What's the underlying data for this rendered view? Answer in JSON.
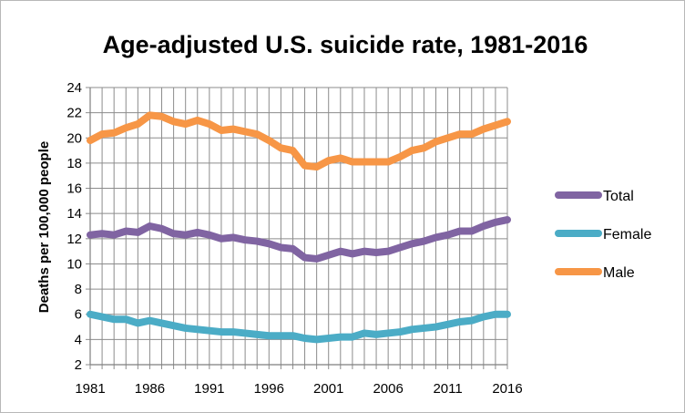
{
  "chart_data": {
    "type": "line",
    "title": "Age-adjusted U.S. suicide rate, 1981-2016",
    "xlabel": "",
    "ylabel": "Deaths per 100,000 people",
    "x": [
      1981,
      1982,
      1983,
      1984,
      1985,
      1986,
      1987,
      1988,
      1989,
      1990,
      1991,
      1992,
      1993,
      1994,
      1995,
      1996,
      1997,
      1998,
      1999,
      2000,
      2001,
      2002,
      2003,
      2004,
      2005,
      2006,
      2007,
      2008,
      2009,
      2010,
      2011,
      2012,
      2013,
      2014,
      2015,
      2016
    ],
    "xlim": [
      1981,
      2016
    ],
    "ylim": [
      2,
      24
    ],
    "x_ticks": [
      "1981",
      "1986",
      "1991",
      "1996",
      "2001",
      "2006",
      "2011",
      "2016"
    ],
    "y_ticks": [
      "2",
      "4",
      "6",
      "8",
      "10",
      "12",
      "14",
      "16",
      "18",
      "20",
      "22",
      "24"
    ],
    "grid": true,
    "legend_position": "right",
    "series": [
      {
        "name": "Total",
        "color": "#8064a2",
        "values": [
          12.3,
          12.4,
          12.3,
          12.6,
          12.5,
          13.0,
          12.8,
          12.4,
          12.3,
          12.5,
          12.3,
          12.0,
          12.1,
          11.9,
          11.8,
          11.6,
          11.3,
          11.2,
          10.5,
          10.4,
          10.7,
          11.0,
          10.8,
          11.0,
          10.9,
          11.0,
          11.3,
          11.6,
          11.8,
          12.1,
          12.3,
          12.6,
          12.6,
          13.0,
          13.3,
          13.5
        ]
      },
      {
        "name": "Female",
        "color": "#4bacc6",
        "values": [
          6.0,
          5.8,
          5.6,
          5.6,
          5.3,
          5.5,
          5.3,
          5.1,
          4.9,
          4.8,
          4.7,
          4.6,
          4.6,
          4.5,
          4.4,
          4.3,
          4.3,
          4.3,
          4.1,
          4.0,
          4.1,
          4.2,
          4.2,
          4.5,
          4.4,
          4.5,
          4.6,
          4.8,
          4.9,
          5.0,
          5.2,
          5.4,
          5.5,
          5.8,
          6.0,
          6.0
        ]
      },
      {
        "name": "Male",
        "color": "#f79646",
        "values": [
          19.8,
          20.3,
          20.4,
          20.8,
          21.1,
          21.8,
          21.7,
          21.3,
          21.1,
          21.4,
          21.1,
          20.6,
          20.7,
          20.5,
          20.3,
          19.8,
          19.2,
          19.0,
          17.8,
          17.7,
          18.2,
          18.4,
          18.1,
          18.1,
          18.1,
          18.1,
          18.5,
          19.0,
          19.2,
          19.7,
          20.0,
          20.3,
          20.3,
          20.7,
          21.0,
          21.3
        ]
      }
    ]
  }
}
